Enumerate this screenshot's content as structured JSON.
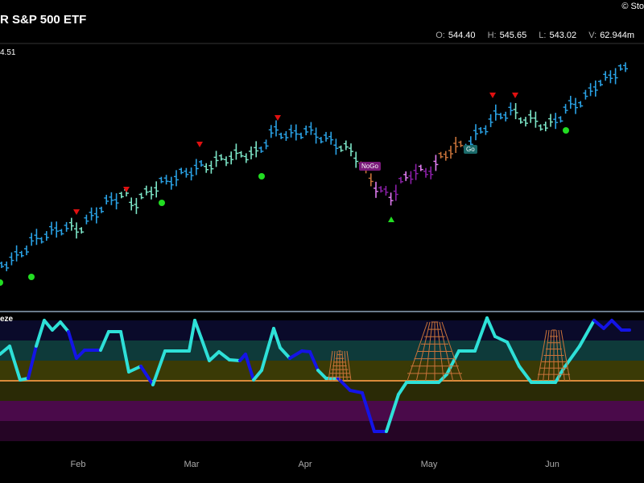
{
  "header": {
    "title": "R S&P 500 ETF",
    "logo_text": "Sto",
    "ohlc": [
      {
        "k": "O:",
        "v": "544.40"
      },
      {
        "k": "H:",
        "v": "545.65"
      },
      {
        "k": "L:",
        "v": "543.02"
      },
      {
        "k": "V:",
        "v": "62.944m"
      }
    ],
    "y_label": "4.51"
  },
  "indicator": {
    "label": "eze"
  },
  "tags": {
    "nogo": "NoGo",
    "go": "Go"
  },
  "colors": {
    "go_strong": "#2aa3e6",
    "go_weak": "#7de6c8",
    "nogo_strong": "#8b1fa8",
    "nogo_weak": "#e07cf0",
    "neutral": "#c9733a",
    "sell_marker": "#e01010",
    "buy_marker": "#22dd22",
    "osc_cyan": "#2ee0d8",
    "osc_blue": "#1414e6",
    "osc_zero": "#d98a3a"
  },
  "chart_data": {
    "type": "candlestick",
    "x_ticks": [
      "Feb",
      "Mar",
      "Apr",
      "May",
      "Jun"
    ],
    "ohlc_last": {
      "open": 544.4,
      "high": 545.65,
      "low": 543.02,
      "volume": "62.944m"
    },
    "series": [
      {
        "name": "price",
        "regimes": [
          {
            "from": 0,
            "to": 27,
            "state": "go"
          },
          {
            "from": 28,
            "to": 32,
            "state": "neutral"
          },
          {
            "from": 33,
            "to": 40,
            "state": "nogo"
          },
          {
            "from": 41,
            "to": 45,
            "state": "neutral"
          },
          {
            "from": 46,
            "to": 70,
            "state": "go"
          }
        ]
      }
    ],
    "oscillator_bands": [
      "#0a0a2a",
      "#0e3a3a",
      "#3a3a06",
      "#2a2a06",
      "#4a0a4a",
      "#250525"
    ]
  }
}
